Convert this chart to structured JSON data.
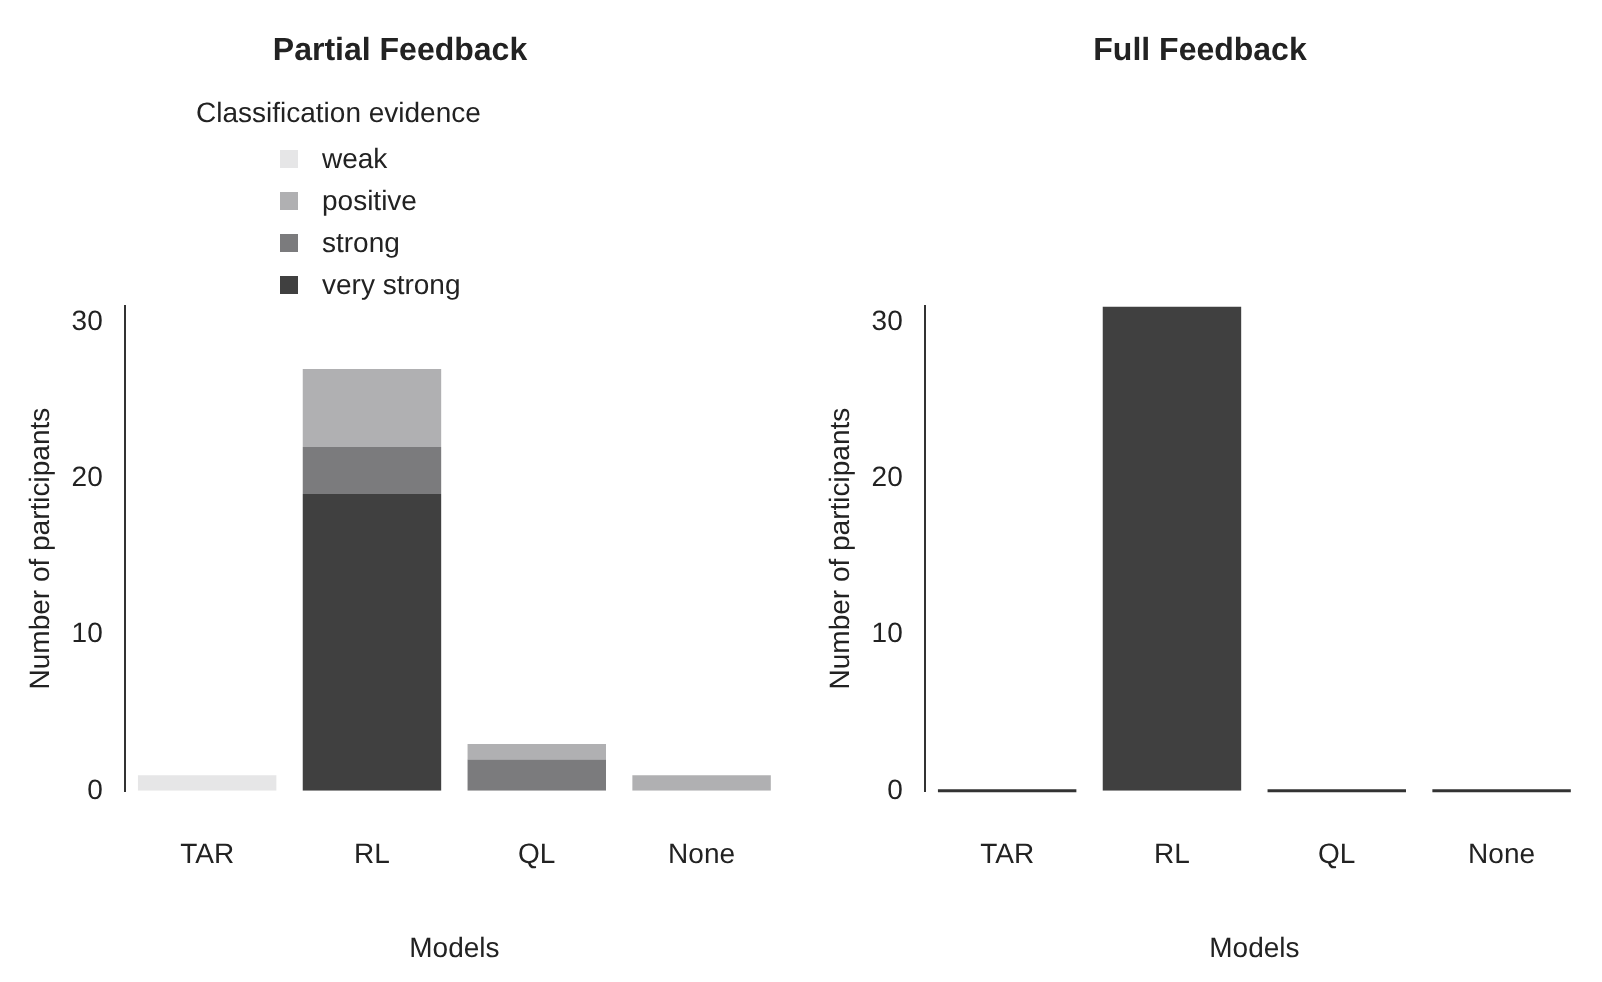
{
  "chart_data": [
    {
      "type": "bar",
      "title": "Partial Feedback",
      "xlabel": "Models",
      "ylabel": "Number of participants",
      "legend_title": "Classification evidence",
      "categories": [
        "TAR",
        "RL",
        "QL",
        "None"
      ],
      "stacked": true,
      "series": [
        {
          "name": "very strong",
          "color": "#404040",
          "values": [
            0,
            19,
            0,
            0
          ]
        },
        {
          "name": "strong",
          "color": "#7b7b7d",
          "values": [
            0,
            3,
            2,
            0
          ]
        },
        {
          "name": "positive",
          "color": "#b0b0b2",
          "values": [
            0,
            5,
            1,
            1
          ]
        },
        {
          "name": "weak",
          "color": "#e6e6e7",
          "values": [
            1,
            0,
            0,
            0
          ]
        }
      ],
      "ylim": [
        0,
        31
      ],
      "yticks": [
        0,
        10,
        20,
        30
      ],
      "grid": false,
      "legend": "top"
    },
    {
      "type": "bar",
      "title": "Full Feedback",
      "xlabel": "Models",
      "ylabel": "Number of participants",
      "categories": [
        "TAR",
        "RL",
        "QL",
        "None"
      ],
      "series": [
        {
          "color": "#404040",
          "values": [
            0,
            31,
            0,
            0
          ]
        }
      ],
      "ylim": [
        0,
        31
      ],
      "yticks": [
        0,
        10,
        20,
        30
      ],
      "grid": false,
      "legend": false
    }
  ]
}
